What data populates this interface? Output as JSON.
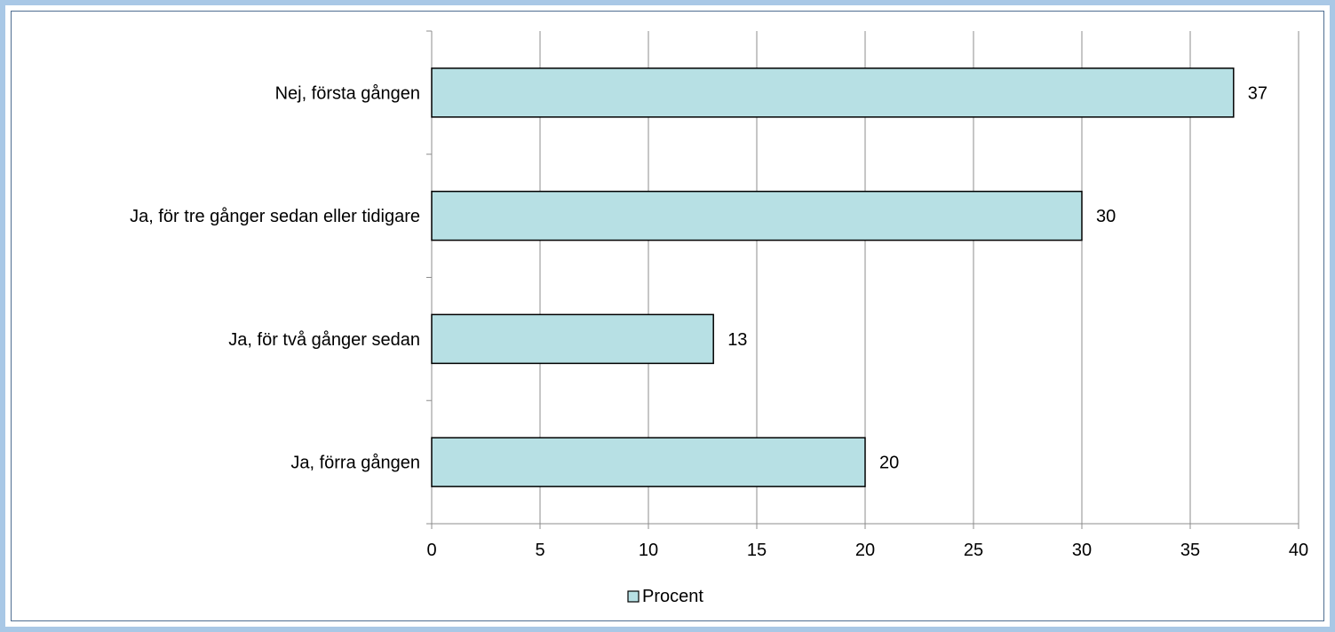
{
  "chart_data": {
    "type": "bar",
    "orientation": "horizontal",
    "categories": [
      "Nej, första gången",
      "Ja, för tre gånger sedan eller tidigare",
      "Ja, för två gånger sedan",
      "Ja, förra gången"
    ],
    "series": [
      {
        "name": "Procent",
        "values": [
          37,
          30,
          13,
          20
        ],
        "color": "#b7e0e4"
      }
    ],
    "xlim": [
      0,
      40
    ],
    "xticks": [
      0,
      5,
      10,
      15,
      20,
      25,
      30,
      35,
      40
    ],
    "grid": true,
    "legend": "bottom",
    "data_labels": true
  }
}
